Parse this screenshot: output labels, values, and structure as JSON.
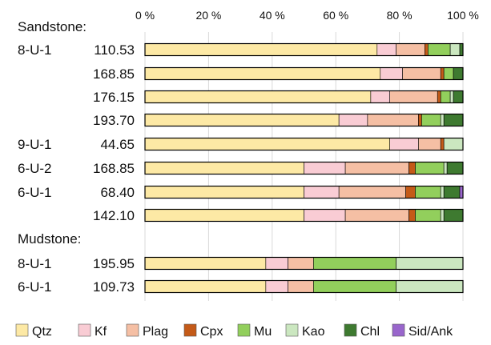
{
  "chart_data": {
    "type": "bar",
    "orientation": "horizontal",
    "stacked": true,
    "percent_stacked": true,
    "xlim": [
      0,
      100
    ],
    "x_ticks": [
      "0 %",
      "20 %",
      "40 %",
      "60 %",
      "80 %",
      "100 %"
    ],
    "groups": [
      {
        "name": "Sandstone:",
        "rows": [
          0,
          1,
          2,
          3,
          4,
          5,
          6,
          7
        ]
      },
      {
        "name": "Mudstone:",
        "rows": [
          8,
          9
        ]
      }
    ],
    "rows": [
      {
        "well": "8-U-1",
        "depth": "110.53"
      },
      {
        "well": "",
        "depth": "168.85"
      },
      {
        "well": "",
        "depth": "176.15"
      },
      {
        "well": "",
        "depth": "193.70"
      },
      {
        "well": "9-U-1",
        "depth": "44.65"
      },
      {
        "well": "6-U-2",
        "depth": "168.85"
      },
      {
        "well": "6-U-1",
        "depth": "68.40"
      },
      {
        "well": "",
        "depth": "142.10"
      },
      {
        "well": "8-U-1",
        "depth": "195.95"
      },
      {
        "well": "6-U-1",
        "depth": "109.73"
      }
    ],
    "series": [
      {
        "name": "Qtz",
        "color": "#FDE9A5",
        "values": [
          73,
          74,
          71,
          61,
          77,
          50,
          50,
          50,
          38,
          38
        ]
      },
      {
        "name": "Kf",
        "color": "#F9CCD4",
        "values": [
          6,
          7,
          6,
          9,
          9,
          13,
          11,
          13,
          7,
          7
        ]
      },
      {
        "name": "Plag",
        "color": "#F5BFA4",
        "values": [
          9,
          12,
          15,
          16,
          7,
          20,
          21,
          20,
          8,
          8
        ]
      },
      {
        "name": "Cpx",
        "color": "#C45A18",
        "values": [
          1,
          1,
          1,
          1,
          1,
          2,
          3,
          2,
          0,
          0
        ]
      },
      {
        "name": "Mu",
        "color": "#92CF5C",
        "values": [
          7,
          3,
          3,
          6,
          0,
          9,
          8,
          8,
          26,
          26
        ]
      },
      {
        "name": "Kao",
        "color": "#CBE7C0",
        "values": [
          3,
          0,
          1,
          1,
          6,
          1,
          1,
          1,
          21,
          21
        ]
      },
      {
        "name": "Chl",
        "color": "#3E7A30",
        "values": [
          1,
          3,
          3,
          6,
          0,
          5,
          5,
          6,
          0,
          0
        ]
      },
      {
        "name": "Sid/Ank",
        "color": "#9966CC",
        "values": [
          0,
          0,
          0,
          0,
          0,
          0,
          1,
          0,
          0,
          0
        ]
      }
    ]
  }
}
